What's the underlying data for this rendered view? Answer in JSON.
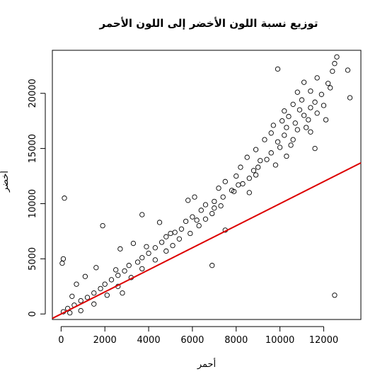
{
  "chart_data": {
    "type": "scatter",
    "title": "توزيع نسبة اللون الأخضر إلى اللون الأحمر",
    "xlabel": "أحمر",
    "ylabel": "أخضر",
    "xlim": [
      -400,
      13700
    ],
    "ylim": [
      -500,
      23900
    ],
    "x_ticks": [
      0,
      2000,
      4000,
      6000,
      8000,
      10000,
      12000
    ],
    "y_ticks": [
      0,
      5000,
      10000,
      15000,
      20000
    ],
    "x_tick_labels": [
      "0",
      "2000",
      "4000",
      "6000",
      "8000",
      "10000",
      "12000"
    ],
    "y_tick_labels": [
      "0",
      "5000",
      "10000",
      "15000",
      "20000"
    ],
    "grid": false,
    "legend": "none",
    "reference_line": {
      "type": "identity",
      "slope": 1,
      "intercept": 0,
      "color": "#dd0000"
    },
    "point_color": "#000000",
    "series": [
      {
        "values": [
          [
            12600,
            23300
          ],
          [
            12500,
            22700
          ],
          [
            13100,
            22100
          ],
          [
            9900,
            22200
          ],
          [
            12400,
            22000
          ],
          [
            11700,
            21400
          ],
          [
            12200,
            20900
          ],
          [
            11100,
            21000
          ],
          [
            12300,
            20500
          ],
          [
            11400,
            20200
          ],
          [
            10800,
            20100
          ],
          [
            11900,
            19900
          ],
          [
            13200,
            19600
          ],
          [
            11000,
            19400
          ],
          [
            11600,
            19200
          ],
          [
            10600,
            19000
          ],
          [
            12000,
            18900
          ],
          [
            11400,
            18700
          ],
          [
            10900,
            18500
          ],
          [
            10200,
            18400
          ],
          [
            11700,
            18200
          ],
          [
            11100,
            18000
          ],
          [
            10400,
            17900
          ],
          [
            11300,
            17600
          ],
          [
            10100,
            17500
          ],
          [
            10700,
            17300
          ],
          [
            12100,
            17600
          ],
          [
            9700,
            17100
          ],
          [
            10300,
            16900
          ],
          [
            10800,
            16700
          ],
          [
            11400,
            16500
          ],
          [
            9600,
            16400
          ],
          [
            10200,
            16200
          ],
          [
            9300,
            15800
          ],
          [
            9900,
            15600
          ],
          [
            10500,
            15300
          ],
          [
            11600,
            15000
          ],
          [
            8900,
            14900
          ],
          [
            9600,
            14600
          ],
          [
            10300,
            14300
          ],
          [
            8500,
            14200
          ],
          [
            9100,
            13900
          ],
          [
            9800,
            13500
          ],
          [
            8200,
            13300
          ],
          [
            8800,
            13000
          ],
          [
            8000,
            12500
          ],
          [
            8600,
            12300
          ],
          [
            7500,
            12000
          ],
          [
            8100,
            11700
          ],
          [
            7200,
            11400
          ],
          [
            7800,
            11200
          ],
          [
            8600,
            11000
          ],
          [
            7400,
            10600
          ],
          [
            7000,
            10200
          ],
          [
            6600,
            9900
          ],
          [
            7300,
            9800
          ],
          [
            6400,
            9400
          ],
          [
            6900,
            9100
          ],
          [
            6000,
            8800
          ],
          [
            6600,
            8600
          ],
          [
            5700,
            8400
          ],
          [
            6300,
            8000
          ],
          [
            5500,
            7700
          ],
          [
            5200,
            7400
          ],
          [
            5900,
            7300
          ],
          [
            4800,
            7000
          ],
          [
            5400,
            6800
          ],
          [
            4600,
            6500
          ],
          [
            5100,
            6200
          ],
          [
            4300,
            6000
          ],
          [
            4800,
            5700
          ],
          [
            4000,
            5500
          ],
          [
            3700,
            5100
          ],
          [
            4300,
            4900
          ],
          [
            3500,
            4700
          ],
          [
            3100,
            4400
          ],
          [
            3700,
            4100
          ],
          [
            2900,
            3900
          ],
          [
            2600,
            3500
          ],
          [
            3200,
            3300
          ],
          [
            2300,
            3100
          ],
          [
            2000,
            2700
          ],
          [
            2600,
            2500
          ],
          [
            1800,
            2300
          ],
          [
            1500,
            1900
          ],
          [
            2100,
            1700
          ],
          [
            1200,
            1500
          ],
          [
            900,
            1200
          ],
          [
            1500,
            900
          ],
          [
            600,
            800
          ],
          [
            300,
            500
          ],
          [
            900,
            300
          ],
          [
            100,
            200
          ],
          [
            400,
            100
          ],
          [
            150,
            10500
          ],
          [
            100,
            5000
          ],
          [
            50,
            4600
          ],
          [
            1900,
            8000
          ],
          [
            3700,
            9000
          ],
          [
            6900,
            4400
          ],
          [
            12500,
            1700
          ],
          [
            2800,
            1900
          ],
          [
            7500,
            7600
          ],
          [
            8900,
            12600
          ],
          [
            6100,
            10600
          ],
          [
            5800,
            10300
          ],
          [
            4500,
            8300
          ],
          [
            3300,
            6400
          ],
          [
            2700,
            5900
          ],
          [
            1600,
            4200
          ],
          [
            1100,
            3400
          ],
          [
            700,
            2700
          ],
          [
            500,
            1600
          ],
          [
            2500,
            4000
          ],
          [
            3900,
            6100
          ],
          [
            5000,
            7300
          ],
          [
            6200,
            8500
          ],
          [
            7000,
            9600
          ],
          [
            7900,
            11100
          ],
          [
            8300,
            11800
          ],
          [
            9000,
            13300
          ],
          [
            9400,
            14000
          ],
          [
            10000,
            15100
          ],
          [
            10600,
            15800
          ],
          [
            11200,
            16900
          ]
        ]
      }
    ]
  }
}
